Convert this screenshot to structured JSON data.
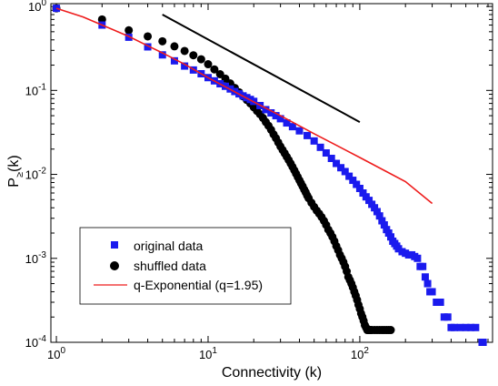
{
  "chart_data": {
    "type": "scatter",
    "title": "",
    "xlabel": "Connectivity (k)",
    "ylabel": "P",
    "ylabel_sub": "≥",
    "ylabel_tail": "(k)",
    "xscale": "log",
    "yscale": "log",
    "xlim": [
      0.92,
      750
    ],
    "ylim": [
      0.0001,
      1.08
    ],
    "x_major_ticks": [
      {
        "value": 1,
        "base": "10",
        "exp": "0"
      },
      {
        "value": 10,
        "base": "10",
        "exp": "1"
      },
      {
        "value": 100,
        "base": "10",
        "exp": "2"
      }
    ],
    "y_major_ticks": [
      {
        "value": 1,
        "base": "10",
        "exp": "0"
      },
      {
        "value": 0.1,
        "base": "10",
        "exp": "-1"
      },
      {
        "value": 0.01,
        "base": "10",
        "exp": "-2"
      },
      {
        "value": 0.001,
        "base": "10",
        "exp": "-3"
      },
      {
        "value": 0.0001,
        "base": "10",
        "exp": "-4"
      }
    ],
    "grid": false,
    "legend_position": "bottom-left",
    "series": [
      {
        "name": "original data",
        "marker": "square",
        "color": "#1a1aee",
        "x": [
          1,
          2,
          3,
          4,
          5,
          6,
          7,
          8,
          9,
          10,
          11,
          12,
          13,
          14,
          15,
          16,
          17,
          18,
          19,
          20,
          22,
          24,
          26,
          28,
          30,
          33,
          36,
          40,
          45,
          50,
          55,
          60,
          65,
          70,
          75,
          80,
          85,
          90,
          95,
          100,
          105,
          110,
          115,
          120,
          125,
          130,
          135,
          140,
          145,
          150,
          155,
          160,
          165,
          170,
          175,
          180,
          190,
          200,
          210,
          220,
          230,
          240,
          250,
          260,
          270,
          280,
          290,
          300,
          320,
          340,
          360,
          380,
          400,
          420,
          460,
          500,
          540,
          580,
          640,
          650
        ],
        "y": [
          0.95,
          0.6,
          0.43,
          0.33,
          0.265,
          0.225,
          0.195,
          0.175,
          0.158,
          0.142,
          0.13,
          0.12,
          0.112,
          0.104,
          0.097,
          0.091,
          0.086,
          0.082,
          0.078,
          0.074,
          0.066,
          0.059,
          0.054,
          0.05,
          0.046,
          0.041,
          0.037,
          0.033,
          0.029,
          0.025,
          0.021,
          0.018,
          0.0155,
          0.0135,
          0.012,
          0.0108,
          0.0095,
          0.0085,
          0.0076,
          0.0068,
          0.006,
          0.0054,
          0.0049,
          0.0044,
          0.004,
          0.0036,
          0.0032,
          0.0028,
          0.0025,
          0.0022,
          0.002,
          0.0018,
          0.0016,
          0.0015,
          0.0014,
          0.0013,
          0.0012,
          0.00115,
          0.0011,
          0.0011,
          0.00105,
          0.001,
          0.0008,
          0.0008,
          0.0006,
          0.0005,
          0.0004,
          0.0004,
          0.0003,
          0.0003,
          0.0002,
          0.0002,
          0.00015,
          0.00015,
          0.00015,
          0.00015,
          0.00015,
          0.00015,
          0.0001,
          0.0001
        ]
      },
      {
        "name": "shuffled data",
        "marker": "circle",
        "color": "#000000",
        "x": [
          1,
          2,
          3,
          4,
          5,
          6,
          7,
          8,
          9,
          10,
          11,
          12,
          13,
          14,
          15,
          16,
          17,
          18,
          19,
          20,
          21,
          22,
          23,
          24,
          25,
          26,
          27,
          28,
          29,
          30,
          31,
          32,
          33,
          34,
          35,
          36,
          37,
          38,
          39,
          40,
          41,
          42,
          43,
          44,
          45,
          46,
          48,
          50,
          52,
          54,
          56,
          58,
          60,
          62,
          64,
          66,
          68,
          70,
          72,
          74,
          76,
          78,
          80,
          82,
          84,
          86,
          88,
          90,
          92,
          94,
          96,
          98,
          100,
          102,
          104,
          106,
          108,
          110,
          112,
          114,
          116,
          118,
          120,
          125,
          130,
          135,
          140,
          145,
          150,
          155,
          160
        ],
        "y": [
          0.95,
          0.7,
          0.52,
          0.44,
          0.385,
          0.335,
          0.295,
          0.262,
          0.235,
          0.205,
          0.178,
          0.156,
          0.138,
          0.121,
          0.107,
          0.095,
          0.085,
          0.077,
          0.07,
          0.063,
          0.057,
          0.052,
          0.047,
          0.042,
          0.038,
          0.034,
          0.03,
          0.027,
          0.024,
          0.0215,
          0.0195,
          0.0178,
          0.0162,
          0.0148,
          0.0135,
          0.0123,
          0.0112,
          0.0102,
          0.0093,
          0.0085,
          0.0078,
          0.0072,
          0.0066,
          0.0061,
          0.0056,
          0.0052,
          0.0046,
          0.0041,
          0.0037,
          0.0034,
          0.0031,
          0.0028,
          0.0025,
          0.0022,
          0.002,
          0.0018,
          0.0016,
          0.0014,
          0.00125,
          0.0011,
          0.001,
          0.0009,
          0.0008,
          0.0007,
          0.0006,
          0.00055,
          0.0005,
          0.00045,
          0.0004,
          0.00036,
          0.00032,
          0.00028,
          0.00025,
          0.00022,
          0.0002,
          0.00018,
          0.00016,
          0.00015,
          0.00014,
          0.00014,
          0.00014,
          0.00014,
          0.00014,
          0.00014,
          0.00014,
          0.00014,
          0.00014,
          0.00014,
          0.00014,
          0.00014,
          0.00014
        ]
      },
      {
        "name": "q-Exponential (q=1.95)",
        "marker": "line",
        "color": "#ee1c1c",
        "x": [
          1,
          1.5,
          2,
          3,
          4,
          5,
          7,
          10,
          15,
          20,
          30,
          50,
          70,
          100,
          150,
          200,
          300
        ],
        "y": [
          0.95,
          0.75,
          0.6,
          0.44,
          0.34,
          0.28,
          0.205,
          0.142,
          0.096,
          0.073,
          0.05,
          0.0305,
          0.0222,
          0.0159,
          0.0108,
          0.0082,
          0.0045
        ]
      },
      {
        "marker": "line",
        "color": "#000000",
        "x": [
          5,
          100
        ],
        "y": [
          0.8,
          0.042
        ]
      }
    ]
  }
}
